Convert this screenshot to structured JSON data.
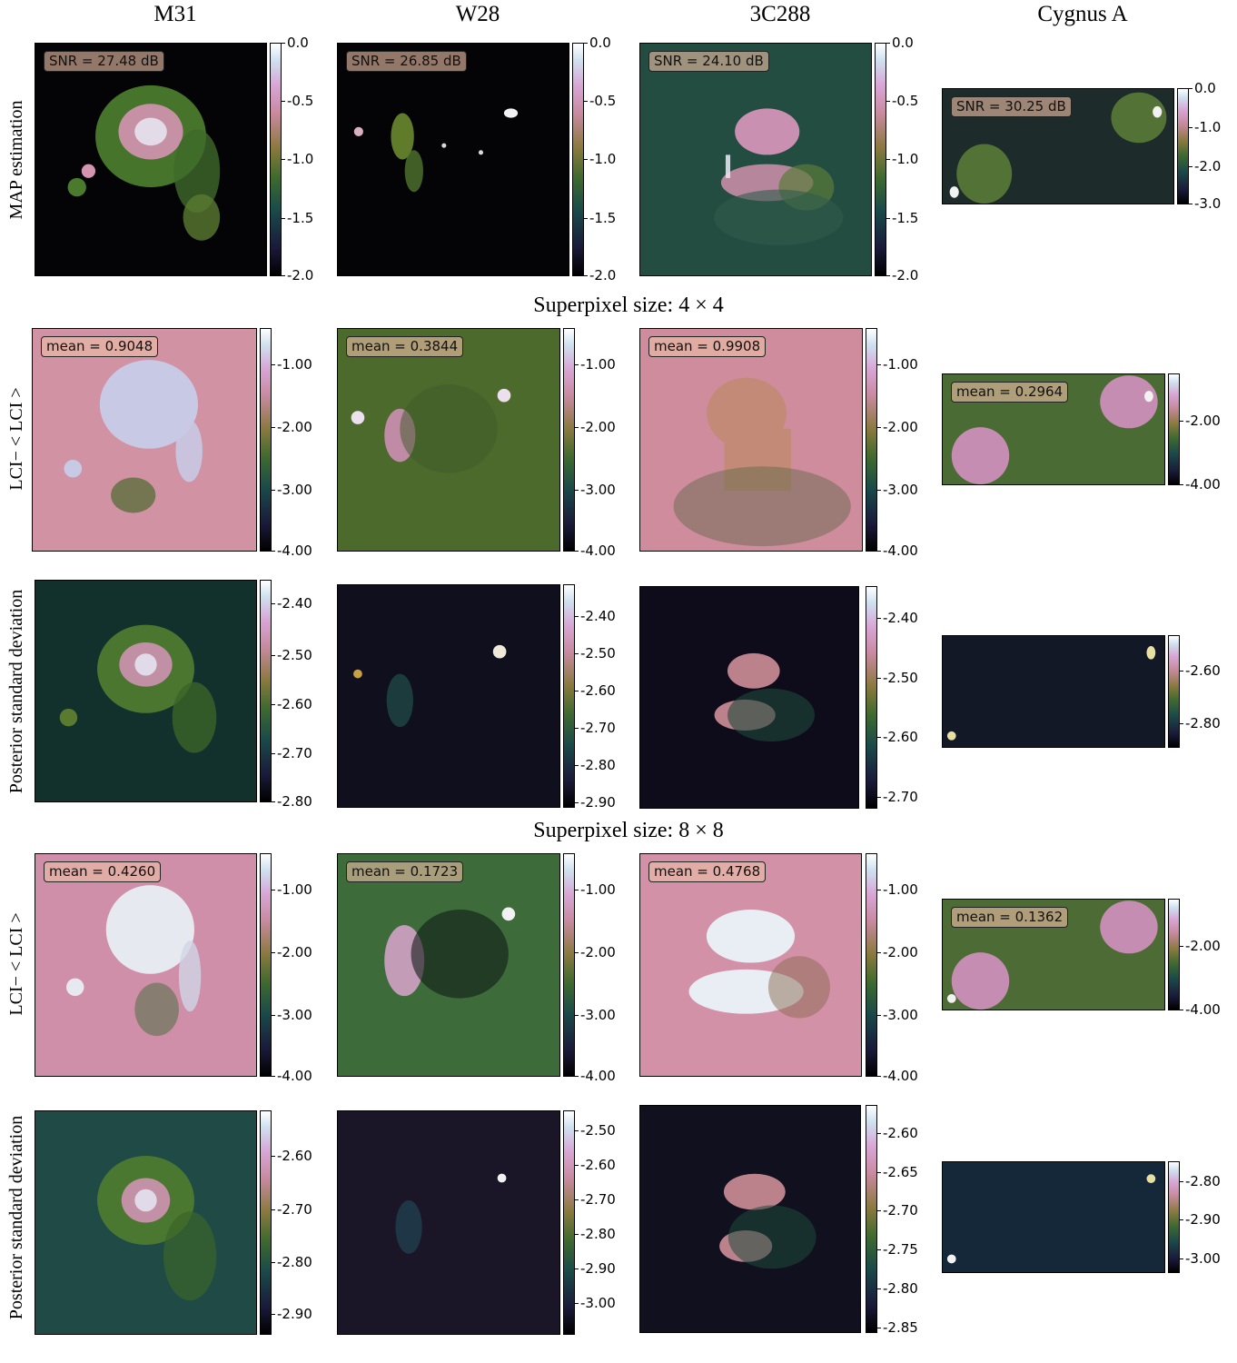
{
  "columns": [
    "M31",
    "W28",
    "3C288",
    "Cygnus A"
  ],
  "row_labels": {
    "map": "MAP estimation",
    "lci4": "LCI− < LCI >",
    "std4": "Posterior standard deviation",
    "lci8": "LCI− < LCI >",
    "std8": "Posterior standard deviation"
  },
  "section_titles": {
    "sp4": "Superpixel size: 4 × 4",
    "sp8": "Superpixel size: 8 × 8"
  },
  "colormap": "cubehelix-like (black → teal → olive green → pink → white)",
  "chart_data": {
    "type": "heatmap",
    "title": "",
    "panels": [
      {
        "row": "map",
        "source": "M31",
        "badge": "SNR = 27.48 dB",
        "colorbar_ticks": [
          "0.0",
          "-0.5",
          "-1.0",
          "-1.5",
          "-2.0"
        ],
        "range": [
          -2.0,
          0.0
        ]
      },
      {
        "row": "map",
        "source": "W28",
        "badge": "SNR = 26.85 dB",
        "colorbar_ticks": [
          "0.0",
          "-0.5",
          "-1.0",
          "-1.5",
          "-2.0"
        ],
        "range": [
          -2.0,
          0.0
        ]
      },
      {
        "row": "map",
        "source": "3C288",
        "badge": "SNR = 24.10 dB",
        "colorbar_ticks": [
          "0.0",
          "-0.5",
          "-1.0",
          "-1.5",
          "-2.0"
        ],
        "range": [
          -2.0,
          0.0
        ]
      },
      {
        "row": "map",
        "source": "Cygnus A",
        "badge": "SNR = 30.25 dB",
        "colorbar_ticks": [
          "0.0",
          "-1.0",
          "-2.0",
          "-3.0"
        ],
        "range": [
          -3.0,
          0.0
        ]
      },
      {
        "row": "lci4",
        "source": "M31",
        "badge": "mean = 0.9048",
        "colorbar_ticks": [
          "-1.00",
          "-2.00",
          "-3.00",
          "-4.00"
        ],
        "range": [
          -4.0,
          -0.5
        ]
      },
      {
        "row": "lci4",
        "source": "W28",
        "badge": "mean = 0.3844",
        "colorbar_ticks": [
          "-1.00",
          "-2.00",
          "-3.00",
          "-4.00"
        ],
        "range": [
          -4.0,
          -0.5
        ]
      },
      {
        "row": "lci4",
        "source": "3C288",
        "badge": "mean = 0.9908",
        "colorbar_ticks": [
          "-1.00",
          "-2.00",
          "-3.00",
          "-4.00"
        ],
        "range": [
          -4.0,
          -0.5
        ]
      },
      {
        "row": "lci4",
        "source": "Cygnus A",
        "badge": "mean = 0.2964",
        "colorbar_ticks": [
          "-2.00",
          "-4.00"
        ],
        "range": [
          -4.0,
          -0.5
        ]
      },
      {
        "row": "std4",
        "source": "M31",
        "badge": "",
        "colorbar_ticks": [
          "-2.40",
          "-2.50",
          "-2.60",
          "-2.70",
          "-2.80"
        ],
        "range": [
          -2.82,
          -2.34
        ]
      },
      {
        "row": "std4",
        "source": "W28",
        "badge": "",
        "colorbar_ticks": [
          "-2.40",
          "-2.50",
          "-2.60",
          "-2.70",
          "-2.80",
          "-2.90"
        ],
        "range": [
          -2.92,
          -2.34
        ]
      },
      {
        "row": "std4",
        "source": "3C288",
        "badge": "",
        "colorbar_ticks": [
          "-2.40",
          "-2.50",
          "-2.60",
          "-2.70"
        ],
        "range": [
          -2.73,
          -2.36
        ]
      },
      {
        "row": "std4",
        "source": "Cygnus A",
        "badge": "",
        "colorbar_ticks": [
          "-2.60",
          "-2.80"
        ],
        "range": [
          -2.9,
          -2.5
        ]
      },
      {
        "row": "lci8",
        "source": "M31",
        "badge": "mean = 0.4260",
        "colorbar_ticks": [
          "-1.00",
          "-2.00",
          "-3.00",
          "-4.00"
        ],
        "range": [
          -4.0,
          -0.5
        ]
      },
      {
        "row": "lci8",
        "source": "W28",
        "badge": "mean = 0.1723",
        "colorbar_ticks": [
          "-1.00",
          "-2.00",
          "-3.00",
          "-4.00"
        ],
        "range": [
          -4.0,
          -0.5
        ]
      },
      {
        "row": "lci8",
        "source": "3C288",
        "badge": "mean = 0.4768",
        "colorbar_ticks": [
          "-1.00",
          "-2.00",
          "-3.00",
          "-4.00"
        ],
        "range": [
          -4.0,
          -0.5
        ]
      },
      {
        "row": "lci8",
        "source": "Cygnus A",
        "badge": "mean = 0.1362",
        "colorbar_ticks": [
          "-2.00",
          "-4.00"
        ],
        "range": [
          -4.0,
          -0.5
        ]
      },
      {
        "row": "std8",
        "source": "M31",
        "badge": "",
        "colorbar_ticks": [
          "-2.60",
          "-2.70",
          "-2.80",
          "-2.90"
        ],
        "range": [
          -2.93,
          -2.55
        ]
      },
      {
        "row": "std8",
        "source": "W28",
        "badge": "",
        "colorbar_ticks": [
          "-2.50",
          "-2.60",
          "-2.70",
          "-2.80",
          "-2.90",
          "-3.00"
        ],
        "range": [
          -3.07,
          -2.47
        ]
      },
      {
        "row": "std8",
        "source": "3C288",
        "badge": "",
        "colorbar_ticks": [
          "-2.60",
          "-2.65",
          "-2.70",
          "-2.75",
          "-2.80",
          "-2.85"
        ],
        "range": [
          -2.86,
          -2.58
        ]
      },
      {
        "row": "std8",
        "source": "Cygnus A",
        "badge": "",
        "colorbar_ticks": [
          "-2.80",
          "-2.90",
          "-3.00"
        ],
        "range": [
          -3.04,
          -2.76
        ]
      }
    ]
  }
}
